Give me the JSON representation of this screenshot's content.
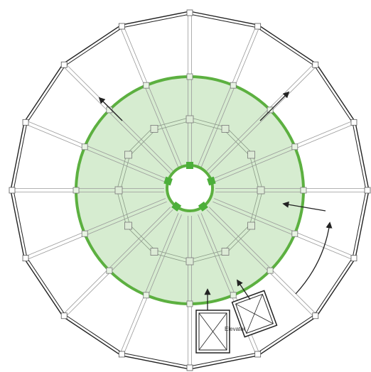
{
  "labels": {
    "elevator": "Elevator"
  },
  "colors": {
    "background": "#ffffff",
    "outline": "#222222",
    "beam": "#9a9a9a",
    "highlight_fill": "#c8e6c0",
    "highlight_stroke": "#5cb040",
    "core_node": "#4caf3a",
    "arrow": "#222222"
  },
  "plan": {
    "outer_sides": 16,
    "radial_lines": 16,
    "core_nodes": 5,
    "arrow_count": 6,
    "elevator_count": 2
  }
}
